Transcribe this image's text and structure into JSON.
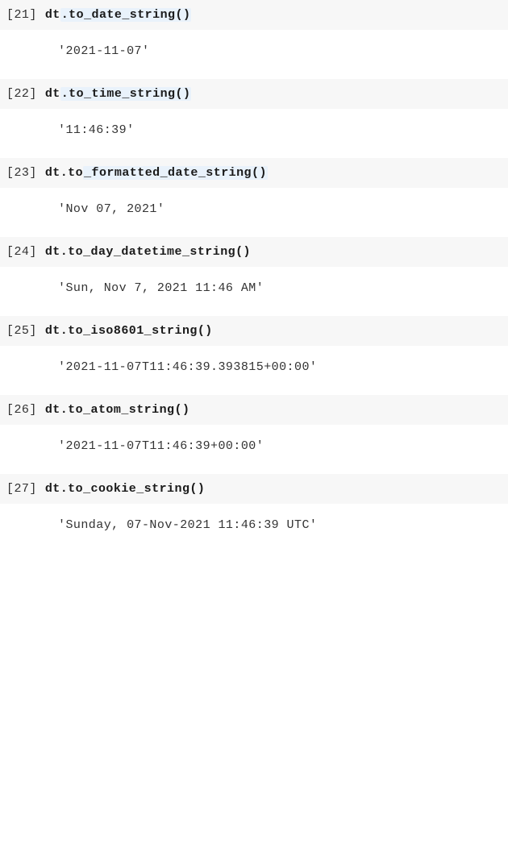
{
  "cells": [
    {
      "prompt": "[21]",
      "code_plain": "dt",
      "code_hl": ".to_date_string()",
      "output": "'2021-11-07'"
    },
    {
      "prompt": "[22]",
      "code_plain": "dt",
      "code_hl": ".to_time_string()",
      "output": "'11:46:39'"
    },
    {
      "prompt": "[23]",
      "code_plain": "dt.to",
      "code_hl": "_formatted_date_string()",
      "output": "'Nov 07, 2021'"
    },
    {
      "prompt": "[24]",
      "code_plain": "dt.to_day_datetime_string()",
      "code_hl": "",
      "output": "'Sun, Nov 7, 2021 11:46 AM'"
    },
    {
      "prompt": "[25]",
      "code_plain": "dt.to_iso8601_string()",
      "code_hl": "",
      "output": "'2021-11-07T11:46:39.393815+00:00'"
    },
    {
      "prompt": "[26]",
      "code_plain": "dt.to_atom_string()",
      "code_hl": "",
      "output": "'2021-11-07T11:46:39+00:00'"
    },
    {
      "prompt": "[27]",
      "code_plain": "dt.to_cookie_string()",
      "code_hl": "",
      "output": "'Sunday, 07-Nov-2021 11:46:39 UTC'"
    }
  ],
  "colors": {
    "input_bg": "#f7f7f7",
    "highlight_bg": "#e9f2fb",
    "text": "#1a1a1a",
    "output_text": "#333333"
  }
}
